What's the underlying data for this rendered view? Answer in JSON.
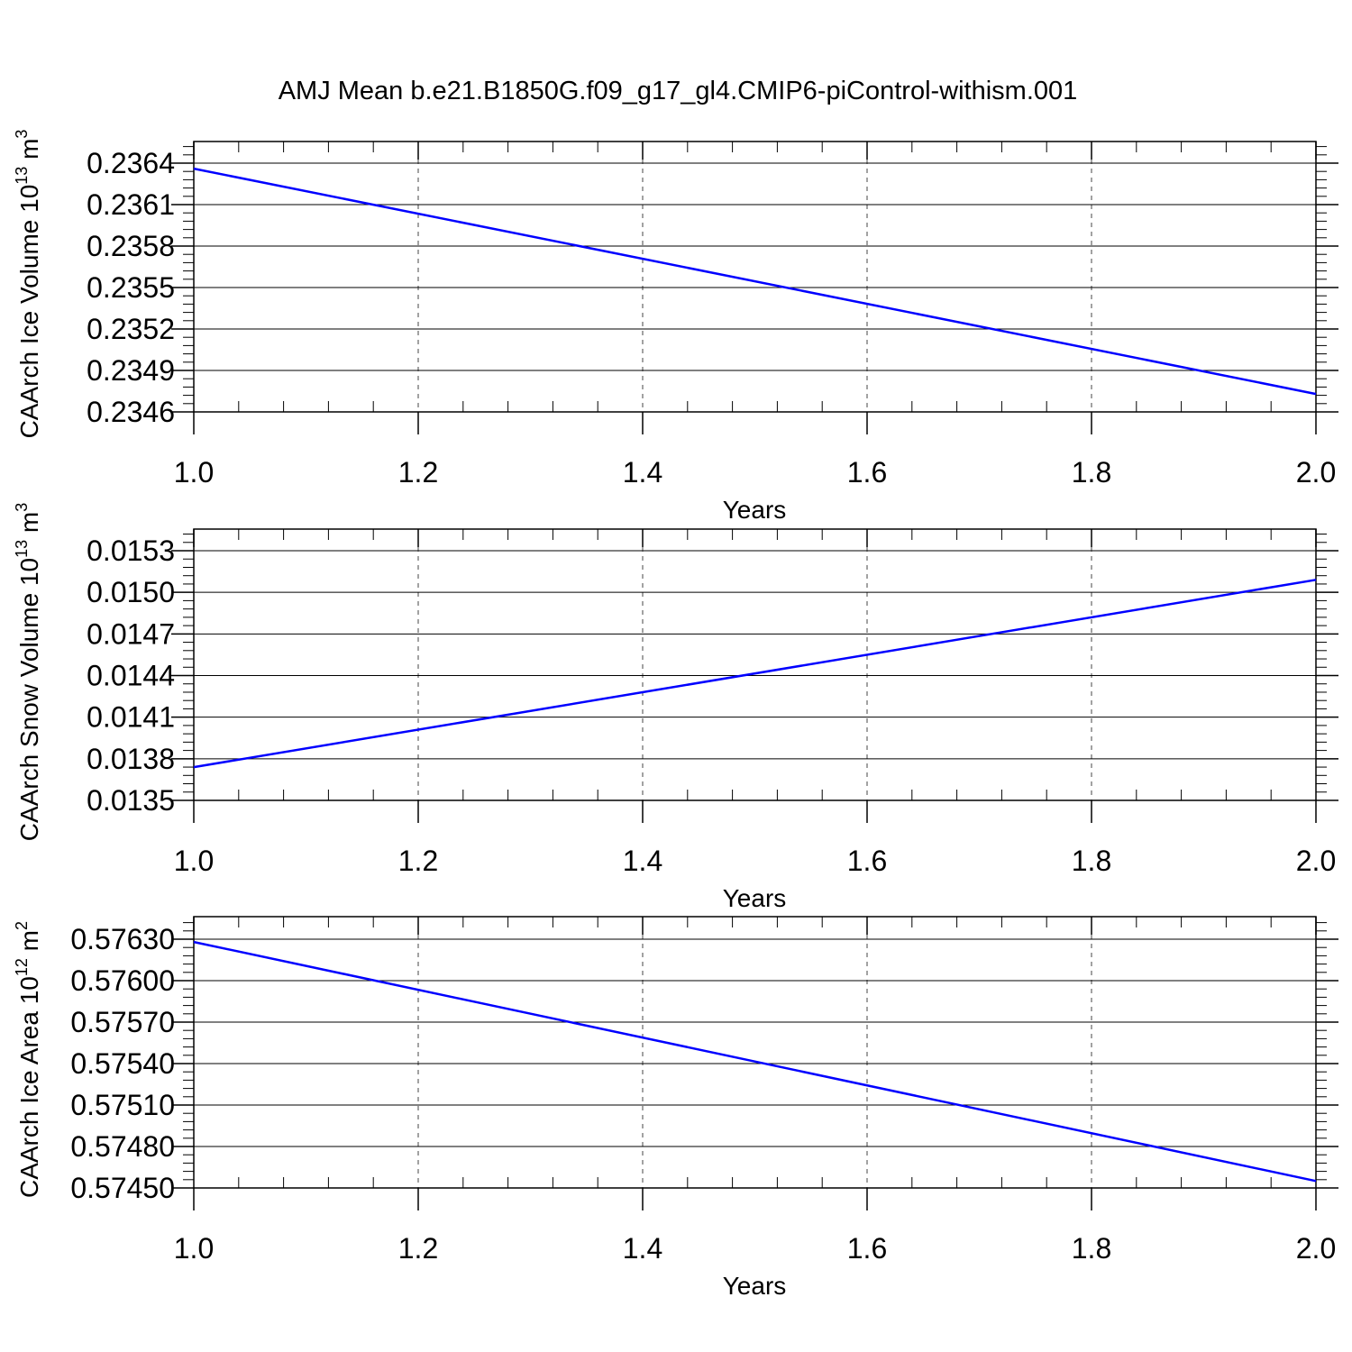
{
  "figure": {
    "title": "AMJ Mean b.e21.B1850G.f09_g17_gl4.CMIP6-piControl-withism.001"
  },
  "colors": {
    "line": "#0000ff",
    "axis": "#000000",
    "grid": "#444444"
  },
  "chart_data": [
    {
      "type": "line",
      "ylabel": {
        "text": "CAArch Ice Volume 10",
        "exp": "13",
        "unit": " m",
        "unit_exp": "3"
      },
      "xlabel": "Years",
      "xlim": [
        1.0,
        2.0
      ],
      "ylim": [
        0.2346,
        0.2364
      ],
      "grid": "vertical-dashed",
      "xticks": [
        "1.0",
        "1.2",
        "1.4",
        "1.6",
        "1.8",
        "2.0"
      ],
      "yticks": [
        "0.2346",
        "0.2349",
        "0.2352",
        "0.2355",
        "0.2358",
        "0.2361",
        "0.2364"
      ],
      "x": [
        1.0,
        2.0
      ],
      "y": [
        0.23636,
        0.23473
      ]
    },
    {
      "type": "line",
      "ylabel": {
        "text": "CAArch Snow Volume 10",
        "exp": "13",
        "unit": " m",
        "unit_exp": "3"
      },
      "xlabel": "Years",
      "xlim": [
        1.0,
        2.0
      ],
      "ylim": [
        0.0135,
        0.0153
      ],
      "grid": "vertical-dashed",
      "xticks": [
        "1.0",
        "1.2",
        "1.4",
        "1.6",
        "1.8",
        "2.0"
      ],
      "yticks": [
        "0.0135",
        "0.0138",
        "0.0141",
        "0.0144",
        "0.0147",
        "0.0150",
        "0.0153"
      ],
      "x": [
        1.0,
        2.0
      ],
      "y": [
        0.01374,
        0.01509
      ]
    },
    {
      "type": "line",
      "ylabel": {
        "text": "CAArch Ice Area 10",
        "exp": "12",
        "unit": " m",
        "unit_exp": "2"
      },
      "xlabel": "Years",
      "xlim": [
        1.0,
        2.0
      ],
      "ylim": [
        0.5745,
        0.5763
      ],
      "grid": "vertical-dashed",
      "xticks": [
        "1.0",
        "1.2",
        "1.4",
        "1.6",
        "1.8",
        "2.0"
      ],
      "yticks": [
        "0.57450",
        "0.57480",
        "0.57510",
        "0.57540",
        "0.57570",
        "0.57600",
        "0.57630"
      ],
      "x": [
        1.0,
        2.0
      ],
      "y": [
        0.57628,
        0.57455
      ]
    }
  ]
}
